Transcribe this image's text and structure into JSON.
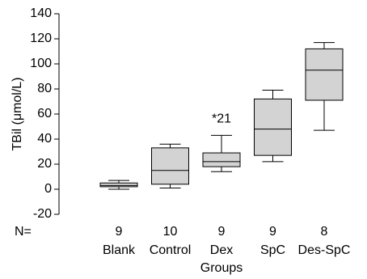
{
  "chart_data": {
    "type": "box",
    "ylabel": "TBil (μmol/L)",
    "xlabel": "Groups",
    "categories": [
      "Blank",
      "Control",
      "Dex",
      "SpC",
      "Des-SpC"
    ],
    "n_label": "N=",
    "n": [
      9,
      10,
      9,
      9,
      8
    ],
    "boxes": [
      {
        "min": 0,
        "q1": 2,
        "median": 3,
        "q3": 5,
        "max": 7
      },
      {
        "min": 1,
        "q1": 4,
        "median": 15,
        "q3": 33,
        "max": 36
      },
      {
        "min": 14,
        "q1": 18,
        "median": 22,
        "q3": 29,
        "max": 43
      },
      {
        "min": 22,
        "q1": 27,
        "median": 48,
        "q3": 72,
        "max": 79
      },
      {
        "min": 47,
        "q1": 71,
        "median": 95,
        "q3": 112,
        "max": 117
      }
    ],
    "annotations": [
      {
        "text": "*21",
        "category": "Dex"
      }
    ],
    "color": "#d3d3d3",
    "ylim": [
      -20,
      140
    ],
    "yticks": [
      -20,
      0,
      20,
      40,
      60,
      80,
      100,
      120,
      140
    ]
  }
}
